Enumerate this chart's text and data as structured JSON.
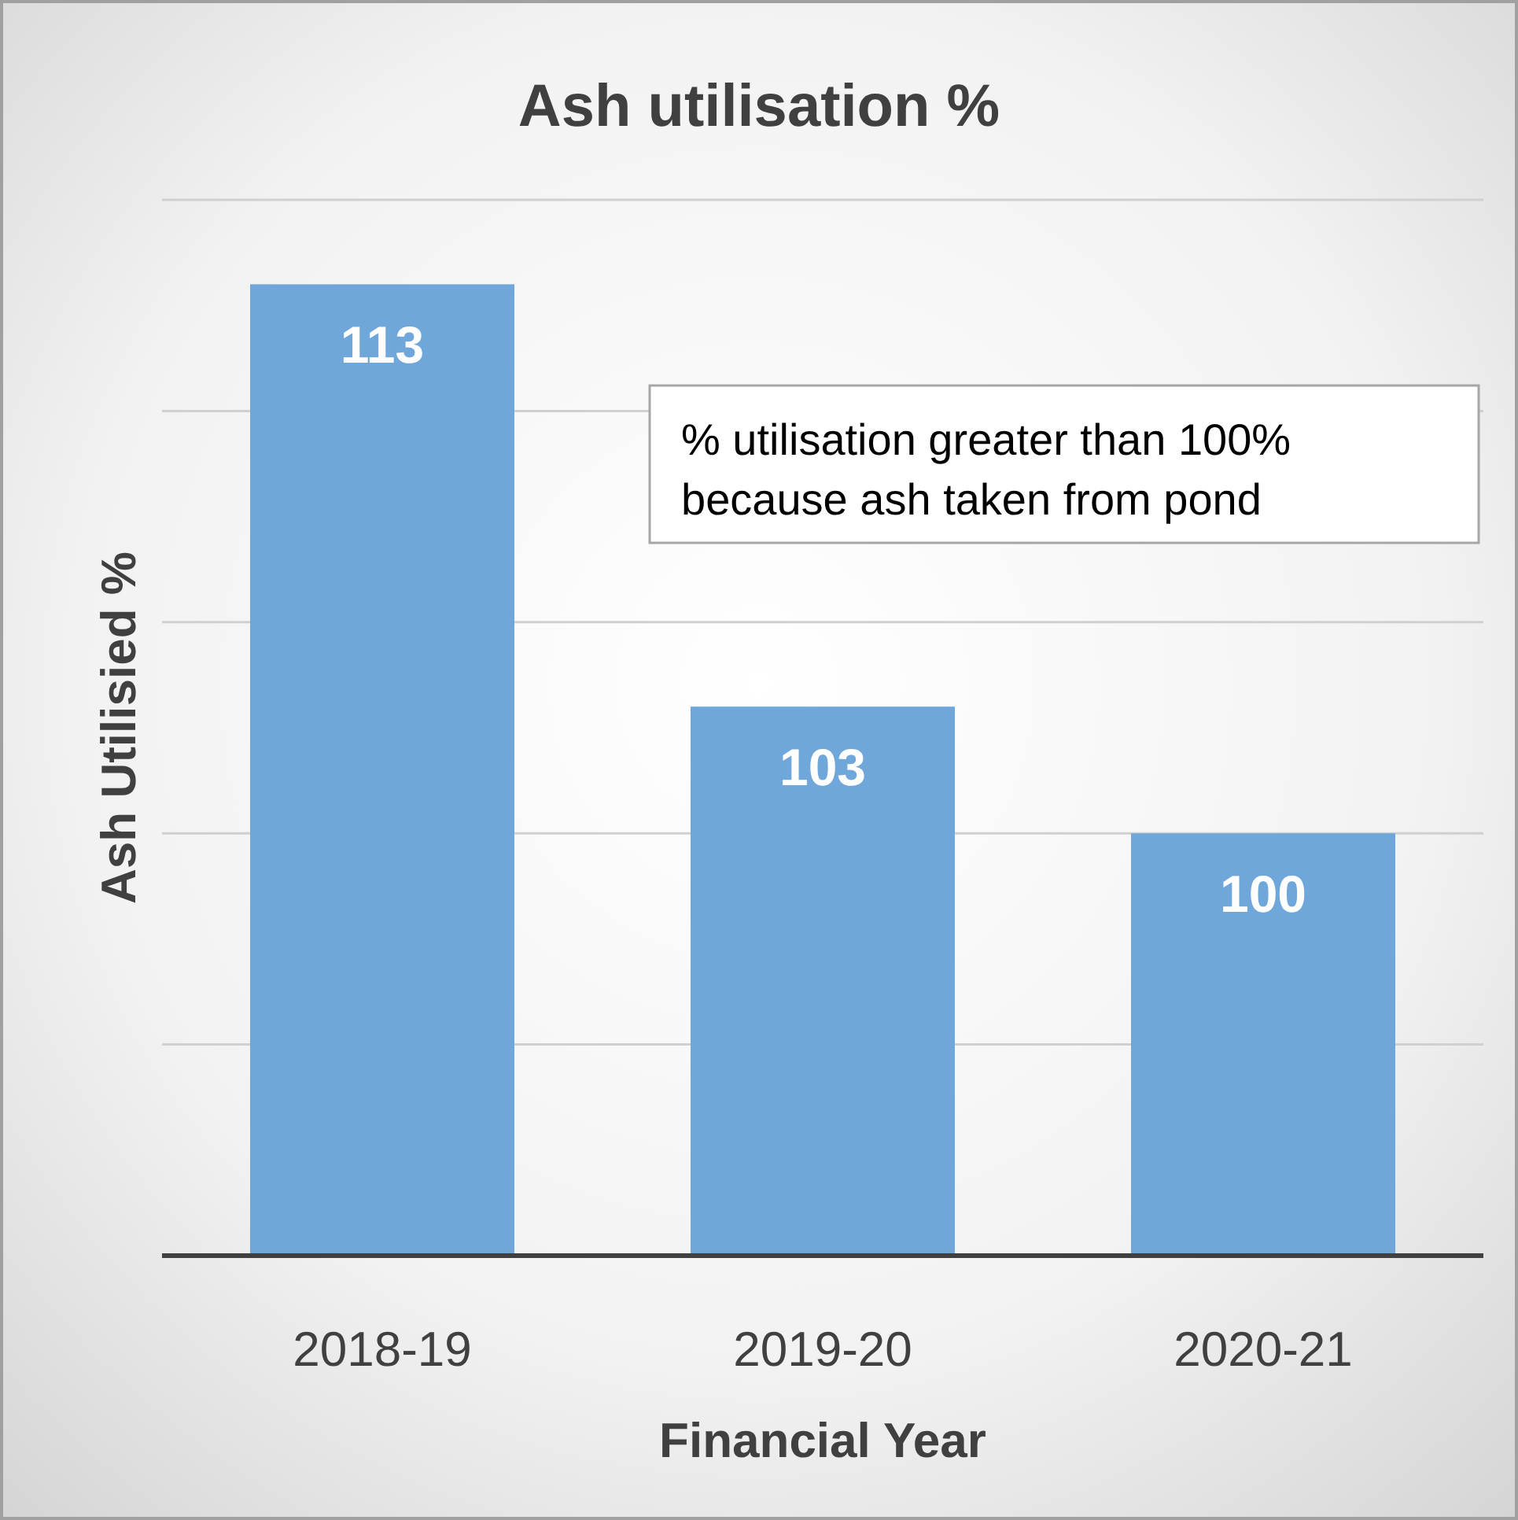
{
  "chart_data": {
    "type": "bar",
    "title": "Ash utilisation %",
    "xlabel": "Financial Year",
    "ylabel": "Ash Utilisied %",
    "categories": [
      "2018-19",
      "2019-20",
      "2020-21"
    ],
    "values": [
      113,
      103,
      100
    ],
    "color": "#70a7da",
    "ylim": [
      90,
      115
    ],
    "yticks": [
      {
        "value": 90,
        "label": null
      },
      {
        "value": 95,
        "label": null
      },
      {
        "value": 100,
        "label": null
      },
      {
        "value": 105,
        "label": null
      },
      {
        "value": 110,
        "label": null
      },
      {
        "value": 115,
        "label": null
      }
    ],
    "tick_labels": "x",
    "grid": "y",
    "data_labels": true,
    "annotations": [
      "% utilisation greater than 100% because ash taken from pond"
    ]
  }
}
